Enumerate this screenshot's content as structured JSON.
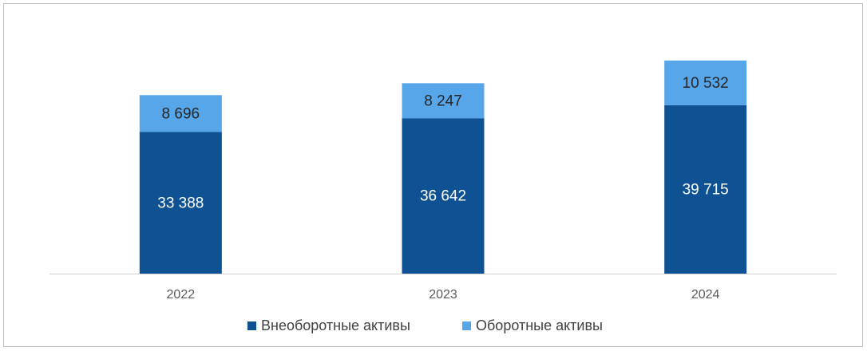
{
  "chart_data": {
    "type": "stacked_bar",
    "categories": [
      "2022",
      "2023",
      "2024"
    ],
    "series": [
      {
        "name": "Внеоборотные активы",
        "color": "#0e5293",
        "label_color": "#ffffff",
        "values": [
          33388,
          36642,
          39715
        ],
        "value_labels": [
          "33 388",
          "36 642",
          "39 715"
        ]
      },
      {
        "name": "Оборотные активы",
        "color": "#58a6ea",
        "label_color": "#262626",
        "values": [
          8696,
          8247,
          10532
        ],
        "value_labels": [
          "8 696",
          "8 247",
          "10 532"
        ]
      }
    ],
    "ylim": [
      0,
      60000
    ],
    "grid": false,
    "legend": "bottom"
  }
}
